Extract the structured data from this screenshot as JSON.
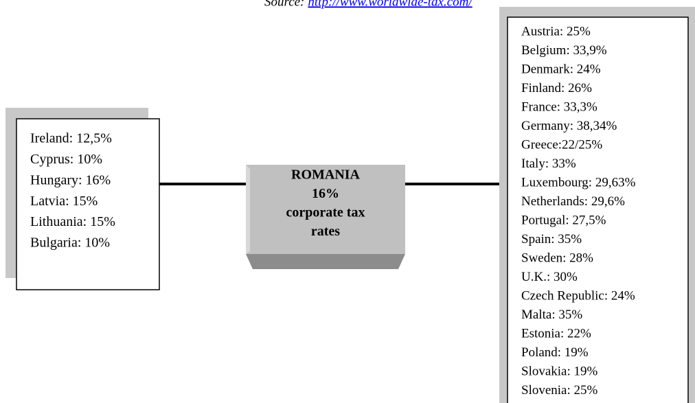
{
  "source": {
    "label": "Source:",
    "url": "http://www.worldwide-tax.com/"
  },
  "left_box": {
    "items": [
      "Ireland: 12,5%",
      "Cyprus: 10%",
      "Hungary: 16%",
      "Latvia: 15%",
      "Lithuania: 15%",
      "Bulgaria: 10%"
    ]
  },
  "center_box": {
    "lines": [
      "ROMANIA",
      "16%",
      "corporate tax",
      "rates"
    ]
  },
  "right_box": {
    "items": [
      "Austria: 25%",
      "Belgium: 33,9%",
      "Denmark: 24%",
      "Finland: 26%",
      "France: 33,3%",
      "Germany: 38,34%",
      "Greece:22/25%",
      "Italy: 33%",
      "Luxembourg: 29,63%",
      "Netherlands: 29,6%",
      "Portugal: 27,5%",
      "Spain: 35%",
      "Sweden: 28%",
      "U.K.: 30%",
      "Czech Republic: 24%",
      "Malta: 35%",
      "Estonia: 22%",
      "Poland: 19%",
      "Slovakia: 19%",
      "Slovenia: 25%"
    ]
  }
}
